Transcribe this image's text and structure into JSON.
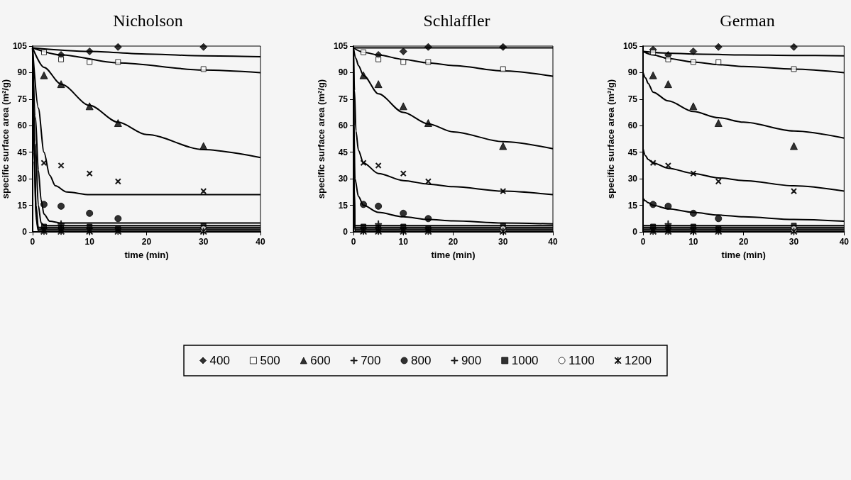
{
  "chart_data": [
    {
      "type": "scatter",
      "title": "Nicholson",
      "xlabel": "time (min)",
      "ylabel": "specific surface area (m²/g)",
      "x": [
        2,
        5,
        10,
        15,
        30
      ],
      "xlim": [
        0,
        40
      ],
      "xticks": [
        0,
        10,
        20,
        30,
        40
      ],
      "ylim": [
        0,
        105
      ],
      "yticks": [
        0,
        15,
        30,
        45,
        60,
        75,
        90,
        105
      ],
      "legend": "bottom",
      "series": [
        {
          "name": "400",
          "color": "#000000",
          "marker": "diamond",
          "values": [
            null,
            100,
            102,
            104.5,
            104.5
          ]
        },
        {
          "name": "500",
          "color": "#ffffff",
          "marker": "square",
          "values": [
            101.5,
            97.5,
            96,
            96,
            92
          ]
        },
        {
          "name": "600",
          "color": "#000000",
          "marker": "triangle",
          "values": [
            88.5,
            83.5,
            71,
            61.5,
            48.5
          ]
        },
        {
          "name": "700",
          "color": "#000000",
          "marker": "cross",
          "values": [
            39,
            37.5,
            33,
            28.5,
            23
          ]
        },
        {
          "name": "800",
          "color": "#000000",
          "marker": "circle",
          "values": [
            15.5,
            14.5,
            10.5,
            7.5,
            null
          ]
        },
        {
          "name": "900",
          "color": "#000000",
          "marker": "plus",
          "values": [
            null,
            4.5,
            null,
            null,
            null
          ]
        },
        {
          "name": "1000",
          "color": "#000000",
          "marker": "square",
          "values": [
            3,
            2.5,
            3,
            2,
            3.5
          ]
        },
        {
          "name": "1100",
          "color": "#ffffff",
          "marker": "circle",
          "values": [
            null,
            null,
            null,
            null,
            1.5
          ]
        },
        {
          "name": "1200",
          "color": "#000000",
          "marker": "star",
          "values": [
            0.3,
            0.3,
            0.3,
            0.3,
            0.3
          ]
        },
        {
          "type": "line",
          "color": "#000000",
          "x": [
            0,
            10,
            20,
            30,
            40
          ],
          "values": [
            104,
            102,
            100.5,
            99.5,
            99
          ]
        },
        {
          "type": "line",
          "color": "#000000",
          "x": [
            0,
            5,
            15,
            30,
            40
          ],
          "values": [
            104,
            100,
            95.5,
            91.5,
            90
          ]
        },
        {
          "type": "line",
          "color": "#000000",
          "x": [
            0,
            2,
            5,
            10,
            15,
            20,
            30,
            40
          ],
          "values": [
            104,
            93,
            83.5,
            71.5,
            62,
            55,
            46.5,
            42
          ]
        },
        {
          "type": "line",
          "color": "#000000",
          "x": [
            0,
            1,
            2,
            3,
            4,
            6,
            10,
            40
          ],
          "values": [
            104,
            70,
            45,
            32,
            26,
            22.5,
            21,
            21
          ]
        },
        {
          "type": "line",
          "color": "#000000",
          "x": [
            0,
            0.5,
            1,
            1.5,
            2,
            3,
            5,
            40
          ],
          "values": [
            104,
            65,
            35,
            18,
            10,
            6,
            5,
            5
          ]
        },
        {
          "type": "line",
          "color": "#000000",
          "x": [
            0,
            0.5,
            1,
            1.5,
            2,
            40
          ],
          "values": [
            104,
            50,
            15,
            5,
            3.5,
            3.5
          ]
        },
        {
          "type": "line",
          "color": "#000000",
          "x": [
            0,
            0.3,
            0.6,
            1,
            40
          ],
          "values": [
            104,
            50,
            15,
            2.5,
            2.5
          ]
        },
        {
          "type": "line",
          "color": "#000000",
          "x": [
            0,
            0.3,
            0.6,
            1,
            40
          ],
          "values": [
            104,
            45,
            10,
            1.5,
            1.5
          ]
        },
        {
          "type": "line",
          "color": "#000000",
          "x": [
            0,
            0.3,
            0.6,
            1,
            40
          ],
          "values": [
            104,
            40,
            8,
            0.5,
            0.5
          ]
        }
      ]
    },
    {
      "type": "scatter",
      "title": "Schlaffler",
      "xlabel": "time (min)",
      "ylabel": "specific surface area (m²/g)",
      "x": [
        2,
        5,
        10,
        15,
        30
      ],
      "xlim": [
        0,
        40
      ],
      "xticks": [
        0,
        10,
        20,
        30,
        40
      ],
      "ylim": [
        0,
        105
      ],
      "yticks": [
        0,
        15,
        30,
        45,
        60,
        75,
        90,
        105
      ],
      "series": [
        {
          "name": "400",
          "color": "#000000",
          "marker": "diamond",
          "values": [
            null,
            100,
            102,
            104.5,
            104.5
          ]
        },
        {
          "name": "500",
          "color": "#ffffff",
          "marker": "square",
          "values": [
            101.5,
            97.5,
            96,
            96,
            92
          ]
        },
        {
          "name": "600",
          "color": "#000000",
          "marker": "triangle",
          "values": [
            88.5,
            83.5,
            71,
            61.5,
            48.5
          ]
        },
        {
          "name": "700",
          "color": "#000000",
          "marker": "cross",
          "values": [
            39,
            37.5,
            33,
            28.5,
            23
          ]
        },
        {
          "name": "800",
          "color": "#000000",
          "marker": "circle",
          "values": [
            15.5,
            14.5,
            10.5,
            7.5,
            null
          ]
        },
        {
          "name": "900",
          "color": "#000000",
          "marker": "plus",
          "values": [
            null,
            4.5,
            null,
            null,
            null
          ]
        },
        {
          "name": "1000",
          "color": "#000000",
          "marker": "square",
          "values": [
            3,
            2.5,
            3,
            2,
            3.5
          ]
        },
        {
          "name": "1100",
          "color": "#ffffff",
          "marker": "circle",
          "values": [
            null,
            null,
            null,
            null,
            1.5
          ]
        },
        {
          "name": "1200",
          "color": "#000000",
          "marker": "star",
          "values": [
            0.3,
            0.3,
            0.3,
            0.3,
            0.3
          ]
        },
        {
          "type": "line",
          "color": "#000000",
          "x": [
            0,
            40
          ],
          "values": [
            104,
            104
          ]
        },
        {
          "type": "line",
          "color": "#000000",
          "x": [
            0,
            2,
            5,
            10,
            15,
            20,
            30,
            40
          ],
          "values": [
            104,
            101.5,
            100,
            97.5,
            95.5,
            94,
            91,
            88
          ]
        },
        {
          "type": "line",
          "color": "#000000",
          "x": [
            0,
            0.5,
            1,
            2,
            5,
            10,
            15,
            20,
            30,
            40
          ],
          "values": [
            104,
            98,
            94,
            88.5,
            78,
            67.5,
            61,
            56.5,
            51,
            47
          ]
        },
        {
          "type": "line",
          "color": "#000000",
          "x": [
            0,
            0.2,
            0.5,
            1,
            2,
            5,
            10,
            15,
            20,
            30,
            40
          ],
          "values": [
            104,
            80,
            57,
            46,
            39,
            33,
            29,
            27,
            25.5,
            23,
            21
          ]
        },
        {
          "type": "line",
          "color": "#000000",
          "x": [
            0,
            0.1,
            0.3,
            1,
            2,
            5,
            10,
            15,
            20,
            30,
            40
          ],
          "values": [
            104,
            60,
            30,
            20,
            15,
            11,
            8.5,
            7,
            6.2,
            5,
            4.5
          ]
        },
        {
          "type": "line",
          "color": "#000000",
          "x": [
            0,
            0.1,
            0.3,
            40
          ],
          "values": [
            104,
            30,
            3.5,
            3.5
          ]
        },
        {
          "type": "line",
          "color": "#000000",
          "x": [
            0,
            0.1,
            0.3,
            40
          ],
          "values": [
            104,
            28,
            2.5,
            2.5
          ]
        },
        {
          "type": "line",
          "color": "#000000",
          "x": [
            0,
            0.1,
            0.3,
            40
          ],
          "values": [
            104,
            26,
            1.5,
            1.5
          ]
        },
        {
          "type": "line",
          "color": "#000000",
          "x": [
            0,
            0.1,
            0.3,
            40
          ],
          "values": [
            104,
            24,
            0.5,
            0.5
          ]
        }
      ]
    },
    {
      "type": "scatter",
      "title": "German",
      "xlabel": "time (min)",
      "ylabel": "specific surface area (m²/g)",
      "x": [
        2,
        5,
        10,
        15,
        30
      ],
      "xlim": [
        0,
        40
      ],
      "xticks": [
        0,
        10,
        20,
        30,
        40
      ],
      "ylim": [
        0,
        105
      ],
      "yticks": [
        0,
        15,
        30,
        45,
        60,
        75,
        90,
        105
      ],
      "series": [
        {
          "name": "400",
          "color": "#000000",
          "marker": "diamond",
          "values": [
            103,
            100,
            102,
            104.5,
            104.5
          ]
        },
        {
          "name": "500",
          "color": "#ffffff",
          "marker": "square",
          "values": [
            101.5,
            97.5,
            96,
            96,
            92
          ]
        },
        {
          "name": "600",
          "color": "#000000",
          "marker": "triangle",
          "values": [
            88.5,
            83.5,
            71,
            61.5,
            48.5
          ]
        },
        {
          "name": "700",
          "color": "#000000",
          "marker": "cross",
          "values": [
            39,
            37.5,
            33,
            28.5,
            23
          ]
        },
        {
          "name": "800",
          "color": "#000000",
          "marker": "circle",
          "values": [
            15.5,
            14.5,
            10.5,
            7.5,
            null
          ]
        },
        {
          "name": "900",
          "color": "#000000",
          "marker": "plus",
          "values": [
            null,
            4.5,
            null,
            null,
            null
          ]
        },
        {
          "name": "1000",
          "color": "#000000",
          "marker": "square",
          "values": [
            3,
            2.5,
            3,
            2,
            3.5
          ]
        },
        {
          "name": "1100",
          "color": "#ffffff",
          "marker": "circle",
          "values": [
            null,
            null,
            null,
            null,
            1.5
          ]
        },
        {
          "name": "1200",
          "color": "#000000",
          "marker": "star",
          "values": [
            0.3,
            0.3,
            0.3,
            0.3,
            0.3
          ]
        },
        {
          "type": "line",
          "color": "#000000",
          "x": [
            0,
            5,
            10,
            20,
            30,
            40
          ],
          "values": [
            102,
            101,
            100.5,
            100,
            99.7,
            99.5
          ]
        },
        {
          "type": "line",
          "color": "#000000",
          "x": [
            0,
            2,
            5,
            10,
            15,
            20,
            30,
            40
          ],
          "values": [
            102,
            100,
            98,
            96,
            94.5,
            93.5,
            92,
            90
          ]
        },
        {
          "type": "line",
          "color": "#000000",
          "x": [
            0,
            0.5,
            1,
            2,
            5,
            10,
            15,
            20,
            30,
            40
          ],
          "values": [
            90,
            87,
            84,
            79,
            74,
            68,
            64.5,
            62,
            57,
            53
          ]
        },
        {
          "type": "line",
          "color": "#000000",
          "x": [
            0,
            0.5,
            1,
            2,
            5,
            10,
            15,
            20,
            30,
            40
          ],
          "values": [
            47,
            43,
            41,
            39,
            36,
            33,
            30.5,
            29,
            26,
            23
          ]
        },
        {
          "type": "line",
          "color": "#000000",
          "x": [
            0,
            0.5,
            1,
            2,
            5,
            10,
            15,
            20,
            30,
            40
          ],
          "values": [
            19,
            17.5,
            16.5,
            15,
            13,
            11,
            9.5,
            8.5,
            7,
            6
          ]
        },
        {
          "type": "line",
          "color": "#000000",
          "x": [
            0,
            40
          ],
          "values": [
            3.5,
            3.5
          ]
        },
        {
          "type": "line",
          "color": "#000000",
          "x": [
            0,
            40
          ],
          "values": [
            2.5,
            2.5
          ]
        },
        {
          "type": "line",
          "color": "#000000",
          "x": [
            0,
            40
          ],
          "values": [
            1.5,
            1.5
          ]
        },
        {
          "type": "line",
          "color": "#000000",
          "x": [
            0,
            40
          ],
          "values": [
            0.5,
            0.5
          ]
        }
      ]
    }
  ]
}
